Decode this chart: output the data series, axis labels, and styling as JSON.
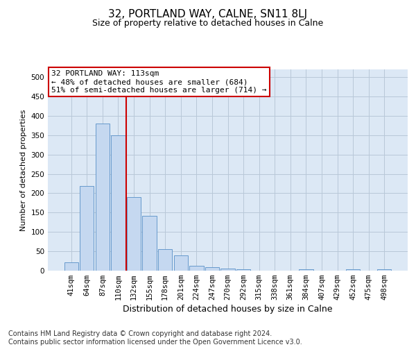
{
  "title": "32, PORTLAND WAY, CALNE, SN11 8LJ",
  "subtitle": "Size of property relative to detached houses in Calne",
  "xlabel": "Distribution of detached houses by size in Calne",
  "ylabel": "Number of detached properties",
  "footer_line1": "Contains HM Land Registry data © Crown copyright and database right 2024.",
  "footer_line2": "Contains public sector information licensed under the Open Government Licence v3.0.",
  "annotation_line1": "32 PORTLAND WAY: 113sqm",
  "annotation_line2": "← 48% of detached houses are smaller (684)",
  "annotation_line3": "51% of semi-detached houses are larger (714) →",
  "categories": [
    "41sqm",
    "64sqm",
    "87sqm",
    "110sqm",
    "132sqm",
    "155sqm",
    "178sqm",
    "201sqm",
    "224sqm",
    "247sqm",
    "270sqm",
    "292sqm",
    "315sqm",
    "338sqm",
    "361sqm",
    "384sqm",
    "407sqm",
    "429sqm",
    "452sqm",
    "475sqm",
    "498sqm"
  ],
  "values": [
    22,
    218,
    380,
    350,
    190,
    142,
    55,
    40,
    12,
    9,
    6,
    3,
    0,
    0,
    0,
    4,
    0,
    0,
    4,
    0,
    3
  ],
  "bar_color": "#c5d8f0",
  "bar_edge_color": "#6699cc",
  "vline_color": "#cc0000",
  "vline_x": 3.5,
  "ylim": [
    0,
    520
  ],
  "yticks": [
    0,
    50,
    100,
    150,
    200,
    250,
    300,
    350,
    400,
    450,
    500
  ],
  "annotation_box_color": "#ffffff",
  "annotation_box_edge": "#cc0000",
  "axes_bg_color": "#dce8f5",
  "background_color": "#ffffff",
  "grid_color": "#b8c8d8",
  "title_fontsize": 11,
  "subtitle_fontsize": 9,
  "xlabel_fontsize": 9,
  "ylabel_fontsize": 8,
  "tick_fontsize": 7.5,
  "footer_fontsize": 7,
  "annot_fontsize": 8
}
